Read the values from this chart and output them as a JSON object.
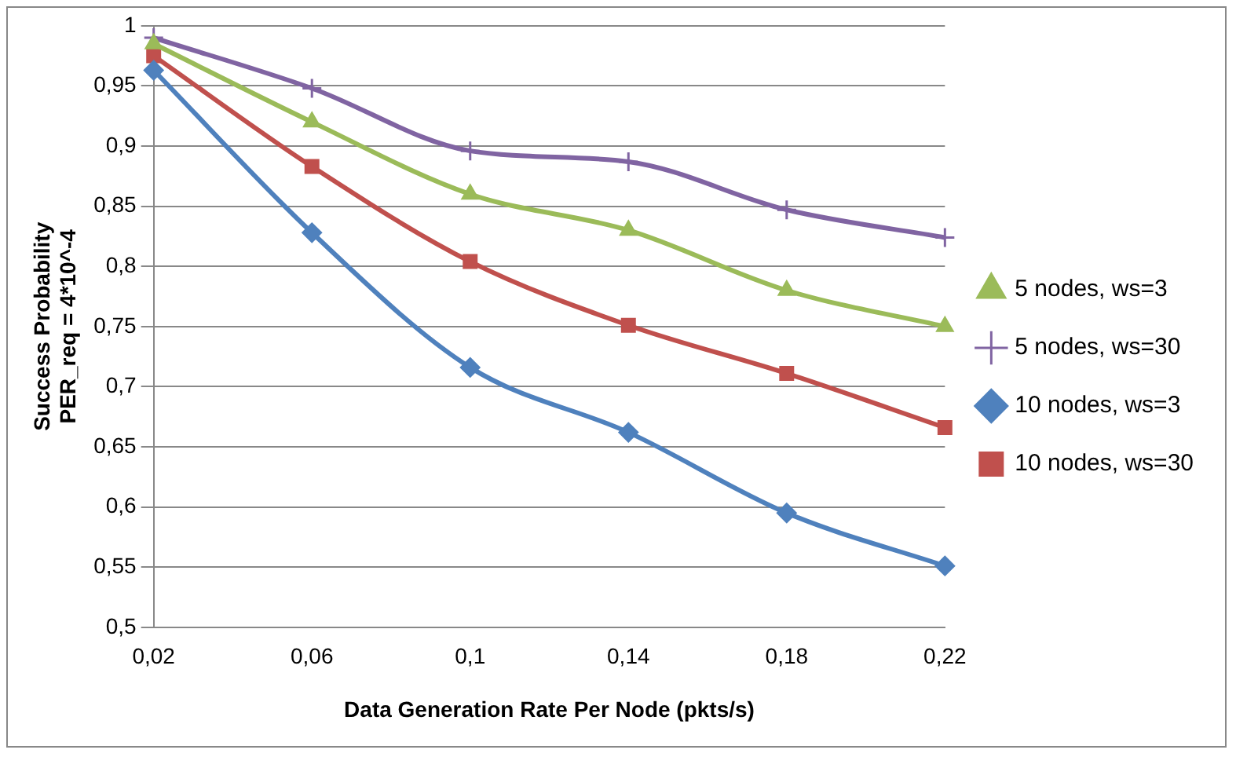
{
  "chart_data": {
    "type": "line",
    "xlabel": "Data Generation Rate Per Node (pkts/s)",
    "ylabel": "Success Probability\nPER_req = 4*10^-4",
    "categories": [
      "0,02",
      "0,06",
      "0,1",
      "0,14",
      "0,18",
      "0,22"
    ],
    "series": [
      {
        "name": "5 nodes, ws=3",
        "color": "#9bbb59",
        "marker": "triangle",
        "values": [
          0.985,
          0.92,
          0.86,
          0.83,
          0.78,
          0.75
        ]
      },
      {
        "name": "5 nodes, ws=30",
        "color": "#8064a2",
        "marker": "cross",
        "values": [
          0.99,
          0.948,
          0.896,
          0.887,
          0.847,
          0.824
        ]
      },
      {
        "name": "10 nodes, ws=3",
        "color": "#4f81bd",
        "marker": "diamond",
        "values": [
          0.963,
          0.828,
          0.716,
          0.662,
          0.595,
          0.551
        ]
      },
      {
        "name": "10 nodes, ws=30",
        "color": "#c0504d",
        "marker": "square",
        "values": [
          0.975,
          0.883,
          0.804,
          0.751,
          0.711,
          0.666
        ]
      }
    ],
    "ylim": [
      0.5,
      1
    ],
    "yticks": [
      {
        "value": 0.5,
        "label": "0,5"
      },
      {
        "value": 0.55,
        "label": "0,55"
      },
      {
        "value": 0.6,
        "label": "0,6"
      },
      {
        "value": 0.65,
        "label": "0,65"
      },
      {
        "value": 0.7,
        "label": "0,7"
      },
      {
        "value": 0.75,
        "label": "0,75"
      },
      {
        "value": 0.8,
        "label": "0,8"
      },
      {
        "value": 0.85,
        "label": "0,85"
      },
      {
        "value": 0.9,
        "label": "0,9"
      },
      {
        "value": 0.95,
        "label": "0,95"
      },
      {
        "value": 1,
        "label": "1"
      }
    ],
    "grid": "y",
    "legend": "right",
    "line_style": "solid"
  }
}
